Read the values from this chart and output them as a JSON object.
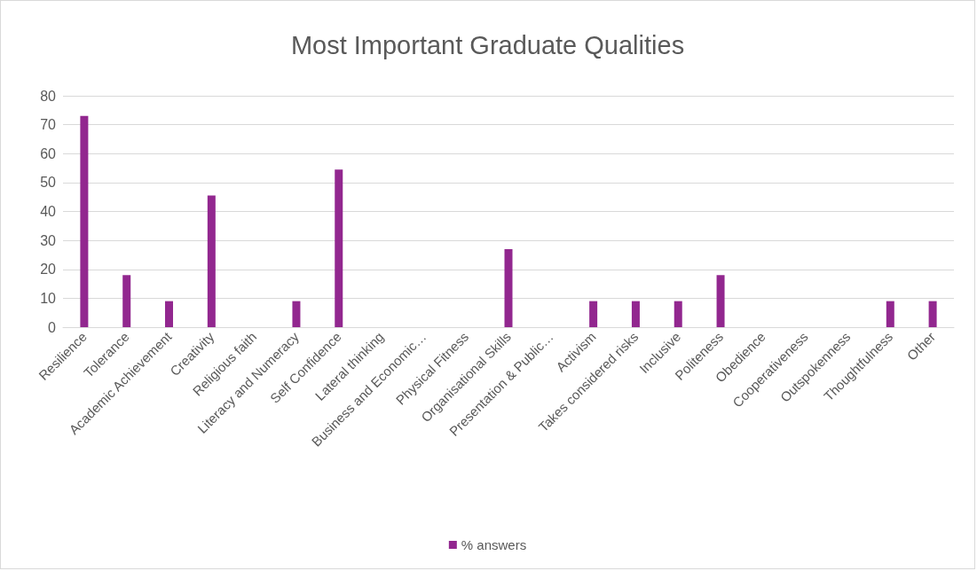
{
  "chart_data": {
    "type": "bar",
    "title": "Most Important Graduate Qualities",
    "categories": [
      "Resilience",
      "Tolerance",
      "Academic Achievement",
      "Creativity",
      "Religious faith",
      "Literacy and Numeracy",
      "Self Confidence",
      "Lateral thinking",
      "Business and Economic…",
      "Physical Fitness",
      "Organisational Skills",
      "Presentation & Public…",
      "Activism",
      "Takes considered risks",
      "Inclusive",
      "Politeness",
      "Obedience",
      "Cooperativeness",
      "Outspokenness",
      "Thoughtfulness",
      "Other"
    ],
    "series": [
      {
        "name": "% answers",
        "color": "#92278f",
        "values": [
          73,
          18,
          9,
          45.5,
          0,
          9,
          54.5,
          0,
          0,
          0,
          27,
          0,
          9,
          9,
          9,
          18,
          0,
          0,
          0,
          9,
          9
        ]
      }
    ],
    "ylim": [
      0,
      80
    ],
    "yticks": [
      0,
      10,
      20,
      30,
      40,
      50,
      60,
      70,
      80
    ],
    "grid": "y",
    "legend": "bottom"
  }
}
